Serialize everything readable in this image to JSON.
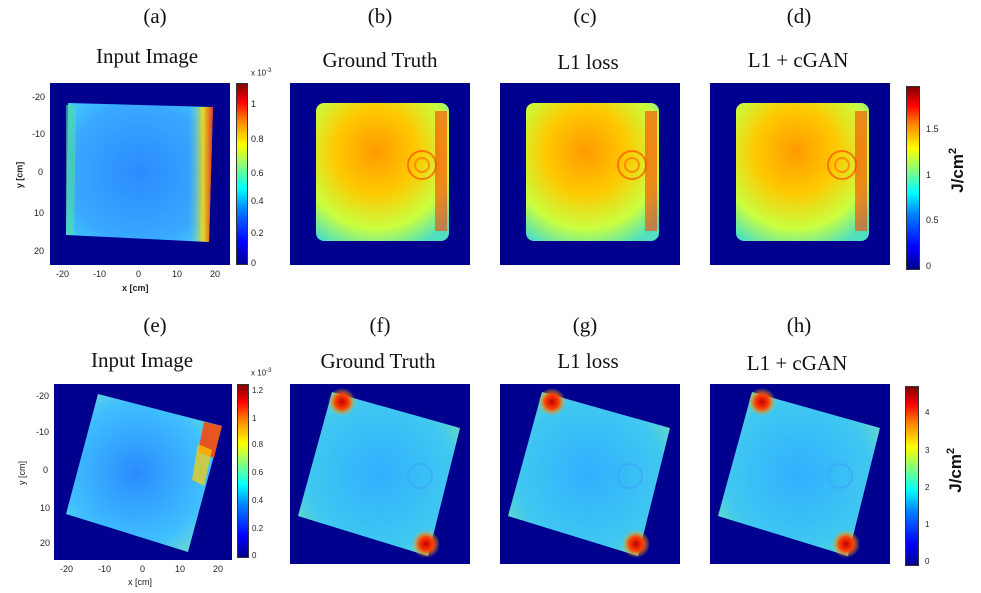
{
  "row1": {
    "labels": [
      "(a)",
      "(b)",
      "(c)",
      "(d)"
    ],
    "titles": [
      "Input Image",
      "Ground Truth",
      "L1 loss",
      "L1 + cGAN"
    ],
    "input_axes": {
      "ylabel": "y [cm]",
      "xlabel": "x [cm]",
      "yticks": [
        "-20",
        "-10",
        "0",
        "10",
        "20"
      ],
      "xticks": [
        "-20",
        "-10",
        "0",
        "10",
        "20"
      ]
    },
    "input_colorbar": {
      "exponent": "x 10",
      "exponent_power": "-3",
      "ticks": [
        "1",
        "0.8",
        "0.6",
        "0.4",
        "0.2",
        "0"
      ]
    },
    "dose_colorbar": {
      "ticks": [
        "1.5",
        "1",
        "0.5",
        "0"
      ],
      "unit": "J/cm",
      "unit_power": "2"
    }
  },
  "row2": {
    "labels": [
      "(e)",
      "(f)",
      "(g)",
      "(h)"
    ],
    "titles": [
      "Input Image",
      "Ground Truth",
      "L1 loss",
      "L1 + cGAN"
    ],
    "input_axes": {
      "ylabel": "y [cm]",
      "xlabel": "x [cm]",
      "yticks": [
        "-20",
        "-10",
        "0",
        "10",
        "20"
      ],
      "xticks": [
        "-20",
        "-10",
        "0",
        "10",
        "20"
      ]
    },
    "input_colorbar": {
      "exponent": "x 10",
      "exponent_power": "-3",
      "ticks": [
        "1.2",
        "1",
        "0.8",
        "0.6",
        "0.4",
        "0.2",
        "0"
      ]
    },
    "dose_colorbar": {
      "ticks": [
        "4",
        "3",
        "2",
        "1",
        "0"
      ],
      "unit": "J/cm",
      "unit_power": "2"
    }
  },
  "colors": {
    "background_field": "#00008f",
    "square_low": "#1a8cff",
    "square_high": "#ff3000"
  }
}
